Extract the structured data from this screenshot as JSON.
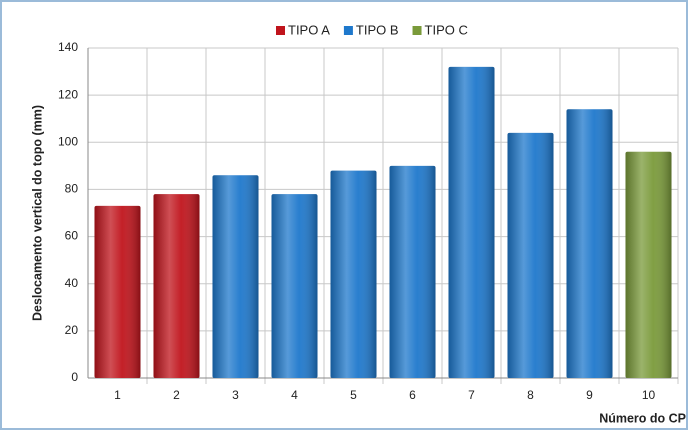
{
  "chart_data": {
    "type": "bar",
    "y_label": "Deslocamento vertical do topo (mm)",
    "x_label": "Número do CP",
    "categories": [
      "1",
      "2",
      "3",
      "4",
      "5",
      "6",
      "7",
      "8",
      "9",
      "10"
    ],
    "series": [
      {
        "name": "TIPO A",
        "color": "#c0141c",
        "values": [
          73,
          78,
          null,
          null,
          null,
          null,
          null,
          null,
          null,
          null
        ]
      },
      {
        "name": "TIPO B",
        "color": "#1e78cc",
        "values": [
          null,
          null,
          86,
          78,
          88,
          90,
          132,
          104,
          114,
          null
        ]
      },
      {
        "name": "TIPO C",
        "color": "#7a9a3a",
        "values": [
          null,
          null,
          null,
          null,
          null,
          null,
          null,
          null,
          null,
          96
        ]
      }
    ],
    "ylim": [
      0,
      140
    ],
    "yticks": [
      0,
      20,
      40,
      60,
      80,
      100,
      120,
      140
    ],
    "grid": true,
    "legend": "top"
  }
}
